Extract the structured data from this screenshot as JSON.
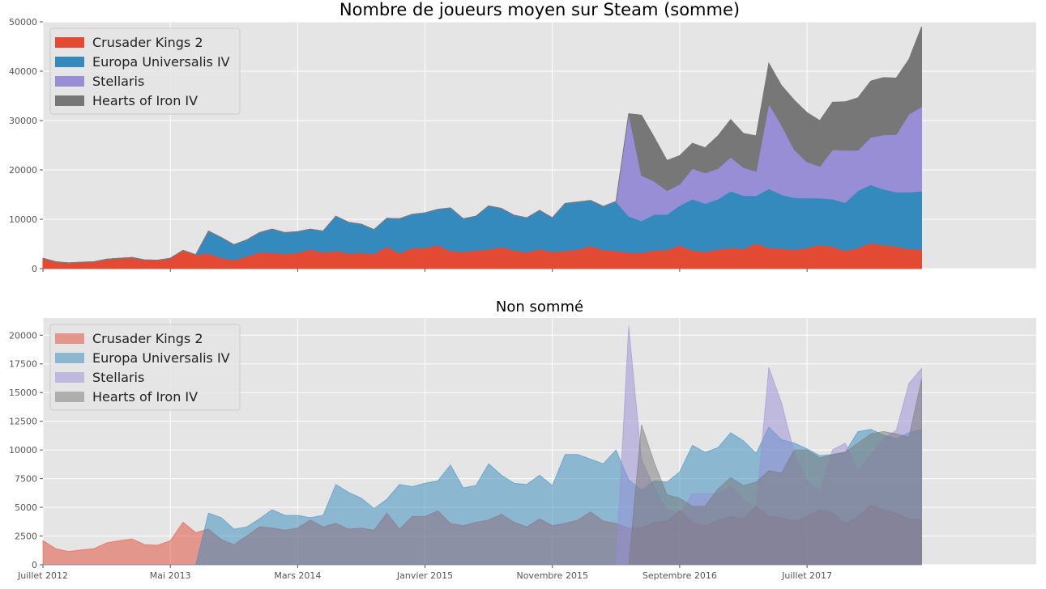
{
  "colors": {
    "Crusader Kings 2": "#e24a33",
    "Europa Universalis IV": "#348abd",
    "Stellaris": "#988ed5",
    "Hearts of Iron IV": "#777777"
  },
  "chart_data": [
    {
      "type": "area",
      "stacked": true,
      "title": "Nombre de joueurs moyen sur Steam (somme)",
      "xlabel": "",
      "ylabel": "",
      "ylim": [
        0,
        50000
      ],
      "yticks": [
        0,
        10000,
        20000,
        30000,
        40000,
        50000
      ],
      "xlim": [
        "2012-07",
        "2019-01"
      ],
      "xtick_positions": [
        "2012-07",
        "2013-05",
        "2014-03",
        "2015-01",
        "2015-11",
        "2016-09",
        "2017-07"
      ],
      "grid": true,
      "legend_position": "upper-left",
      "x": [
        "2012-07",
        "2012-08",
        "2012-09",
        "2012-10",
        "2012-11",
        "2012-12",
        "2013-01",
        "2013-02",
        "2013-03",
        "2013-04",
        "2013-05",
        "2013-06",
        "2013-07",
        "2013-08",
        "2013-09",
        "2013-10",
        "2013-11",
        "2013-12",
        "2014-01",
        "2014-02",
        "2014-03",
        "2014-04",
        "2014-05",
        "2014-06",
        "2014-07",
        "2014-08",
        "2014-09",
        "2014-10",
        "2014-11",
        "2014-12",
        "2015-01",
        "2015-02",
        "2015-03",
        "2015-04",
        "2015-05",
        "2015-06",
        "2015-07",
        "2015-08",
        "2015-09",
        "2015-10",
        "2015-11",
        "2015-12",
        "2016-01",
        "2016-02",
        "2016-03",
        "2016-04",
        "2016-05",
        "2016-06",
        "2016-07",
        "2016-08",
        "2016-09",
        "2016-10",
        "2016-11",
        "2016-12",
        "2017-01",
        "2017-02",
        "2017-03",
        "2017-04",
        "2017-05",
        "2017-06",
        "2017-07",
        "2017-08",
        "2017-09",
        "2017-10",
        "2017-11",
        "2017-12",
        "2018-01",
        "2018-02",
        "2018-03",
        "2018-04"
      ],
      "series": [
        {
          "name": "Crusader Kings 2",
          "values": [
            2100,
            1400,
            1150,
            1300,
            1400,
            1900,
            2100,
            2250,
            1750,
            1700,
            2100,
            3700,
            2800,
            3100,
            2200,
            1750,
            2500,
            3300,
            3200,
            3000,
            3200,
            3900,
            3300,
            3600,
            3100,
            3200,
            3000,
            4500,
            3100,
            4200,
            4200,
            4700,
            3600,
            3400,
            3700,
            3900,
            4400,
            3700,
            3300,
            4000,
            3400,
            3600,
            3900,
            4600,
            3800,
            3600,
            3200,
            3200,
            3700,
            3800,
            4700,
            3700,
            3400,
            3900,
            4200,
            4000,
            5100,
            4200,
            4100,
            3800,
            4200,
            4800,
            4500,
            3600,
            4200,
            5200,
            4800,
            4500,
            4000,
            3900
          ]
        },
        {
          "name": "Europa Universalis IV",
          "values": [
            0,
            0,
            0,
            0,
            0,
            0,
            0,
            0,
            0,
            0,
            0,
            0,
            0,
            4500,
            4100,
            3100,
            3300,
            4000,
            4800,
            4300,
            4300,
            4100,
            4300,
            7000,
            6300,
            5800,
            4900,
            5700,
            7000,
            6800,
            7100,
            7300,
            8700,
            6700,
            6900,
            8800,
            7800,
            7100,
            7000,
            7800,
            6900,
            9600,
            9600,
            9200,
            8800,
            10000,
            7400,
            6500,
            7300,
            7200,
            8100,
            10400,
            9800,
            10200,
            11500,
            10800,
            9700,
            12000,
            10900,
            10600,
            10100,
            9500,
            9600,
            9800,
            11600,
            11800,
            11300,
            11000,
            11500,
            11800
          ]
        },
        {
          "name": "Stellaris",
          "values": [
            0,
            0,
            0,
            0,
            0,
            0,
            0,
            0,
            0,
            0,
            0,
            0,
            0,
            0,
            0,
            0,
            0,
            0,
            0,
            0,
            0,
            0,
            0,
            0,
            0,
            0,
            0,
            0,
            0,
            0,
            0,
            0,
            0,
            0,
            0,
            0,
            0,
            0,
            0,
            0,
            0,
            0,
            0,
            0,
            0,
            0,
            20800,
            9200,
            6700,
            4800,
            4300,
            6200,
            6200,
            6200,
            6900,
            5700,
            4900,
            17200,
            14100,
            9700,
            7300,
            6400,
            10000,
            10600,
            8200,
            9600,
            11000,
            11700,
            15800,
            17100
          ]
        },
        {
          "name": "Hearts of Iron IV",
          "values": [
            0,
            0,
            0,
            0,
            0,
            0,
            0,
            0,
            0,
            0,
            0,
            0,
            0,
            0,
            0,
            0,
            0,
            0,
            0,
            0,
            0,
            0,
            0,
            0,
            0,
            0,
            0,
            0,
            0,
            0,
            0,
            0,
            0,
            0,
            0,
            0,
            0,
            0,
            0,
            0,
            0,
            0,
            0,
            0,
            0,
            0,
            0,
            12200,
            8900,
            6100,
            5800,
            5100,
            5100,
            6600,
            7600,
            6900,
            7200,
            8200,
            8000,
            10000,
            10000,
            9300,
            9600,
            9800,
            10600,
            11400,
            11600,
            11400,
            11100,
            16200
          ]
        }
      ]
    },
    {
      "type": "area",
      "stacked": false,
      "title": "Non sommé",
      "xlabel": "",
      "ylabel": "",
      "ylim": [
        0,
        21500
      ],
      "yticks": [
        0,
        2500,
        5000,
        7500,
        10000,
        12500,
        15000,
        17500,
        20000
      ],
      "xlim": [
        "2012-07",
        "2019-01"
      ],
      "xtick_positions": [
        "2012-07",
        "2013-05",
        "2014-03",
        "2015-01",
        "2015-11",
        "2016-09",
        "2017-07"
      ],
      "xtick_labels": [
        "Juillet 2012",
        "Mai 2013",
        "Mars 2014",
        "Janvier 2015",
        "Novembre 2015",
        "Septembre 2016",
        "Juillet 2017"
      ],
      "grid": true,
      "legend_position": "upper-left",
      "series_ref": "same as chart 1"
    }
  ]
}
